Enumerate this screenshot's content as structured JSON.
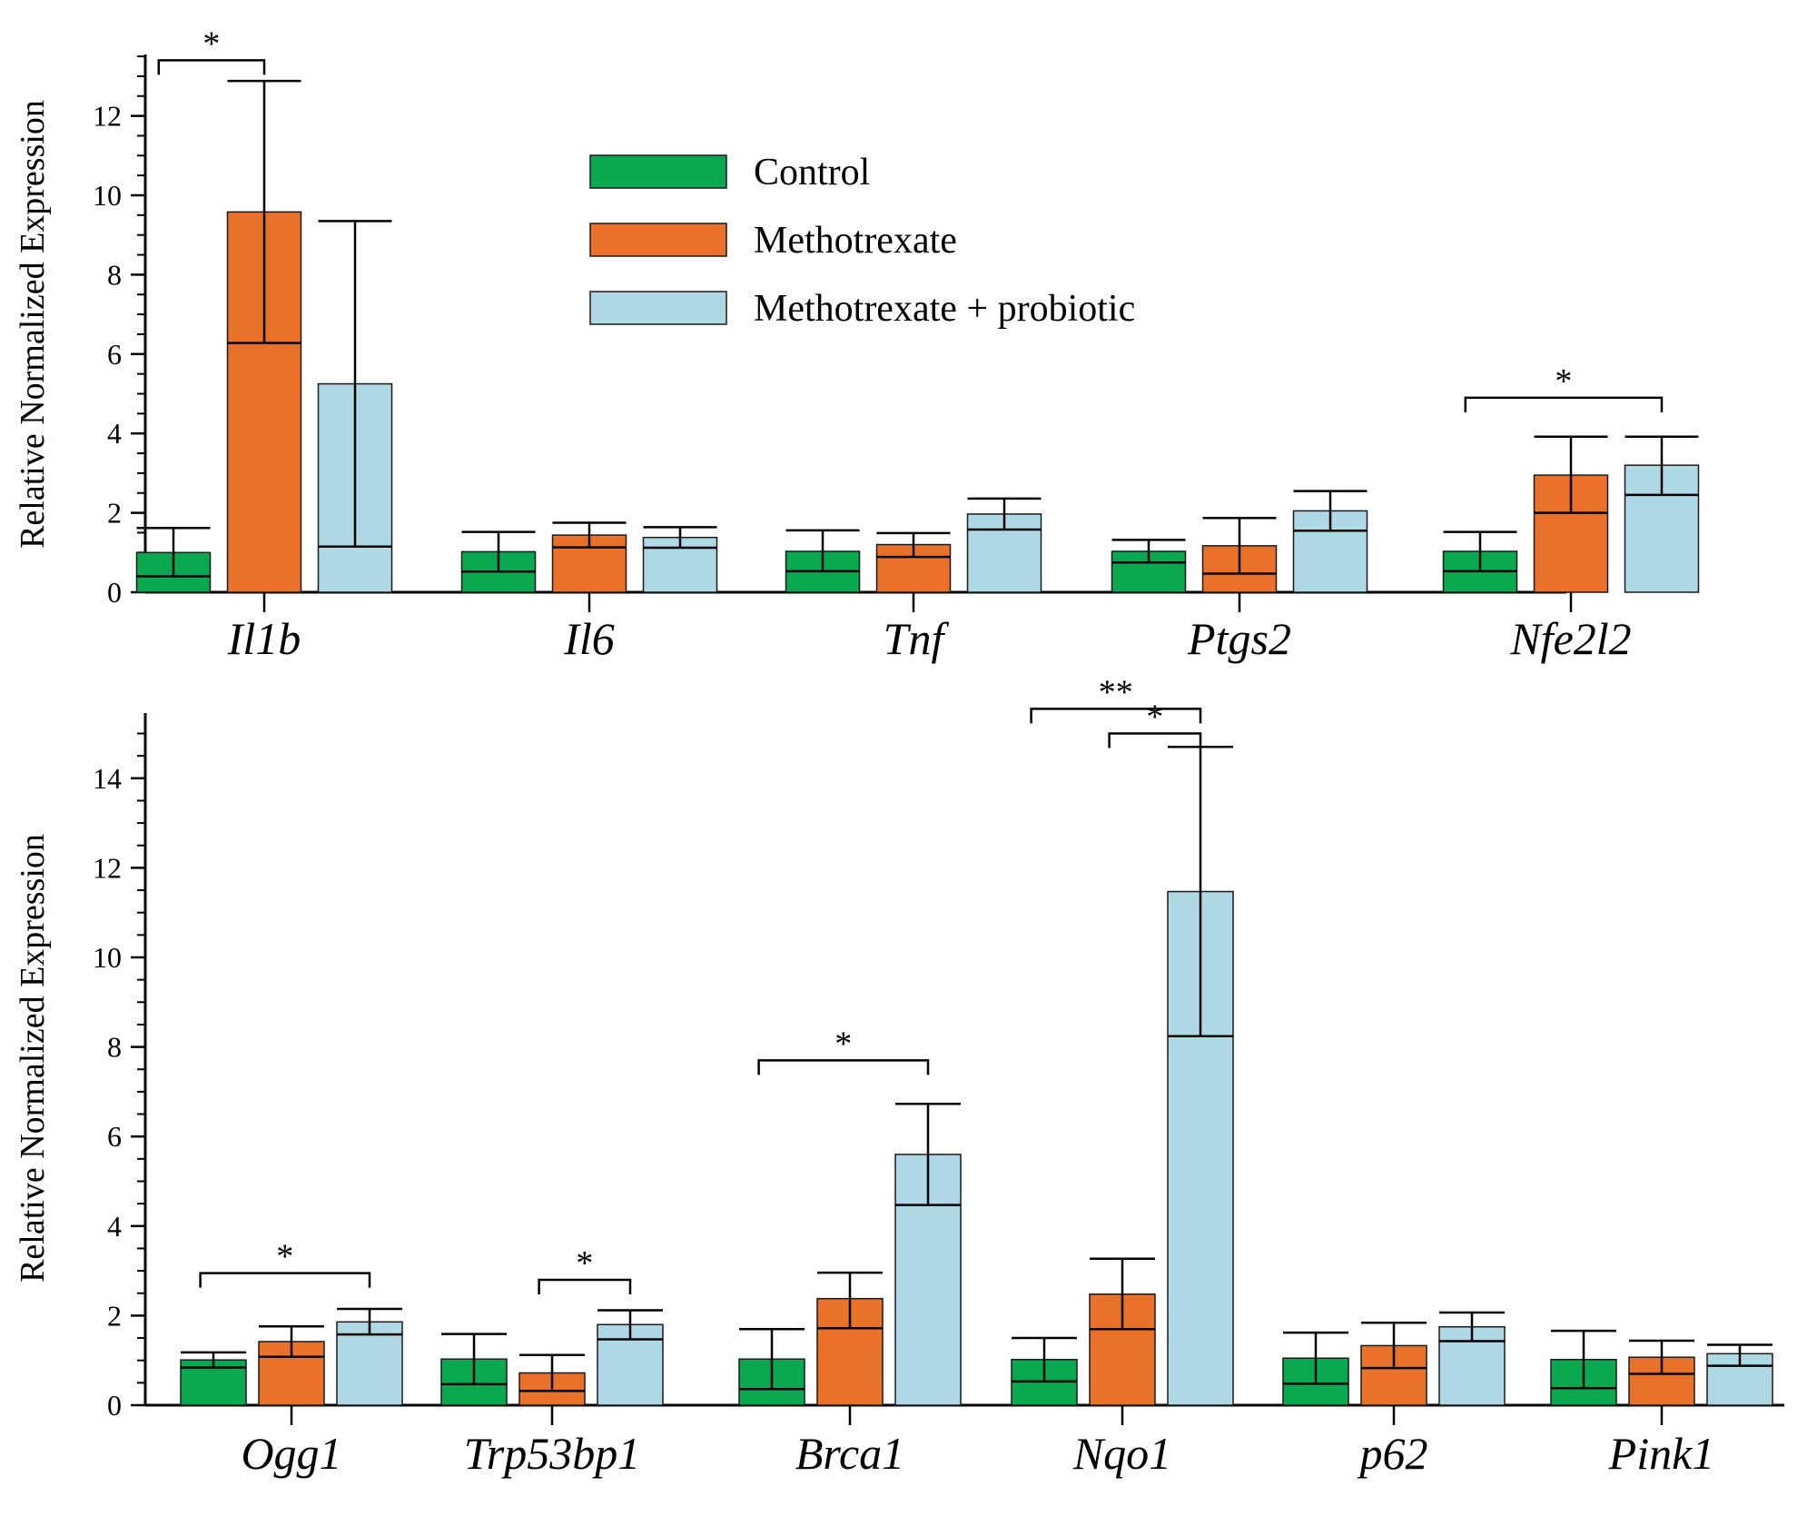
{
  "legend": [
    {
      "label": "Control",
      "color": "#0aa84f"
    },
    {
      "label": "Methotrexate",
      "color": "#e9712a"
    },
    {
      "label": "Methotrexate + probiotic",
      "color": "#add8e4"
    }
  ],
  "chart_data": [
    {
      "type": "bar",
      "ylabel": "Relative Normalized Expression",
      "ylim": [
        0,
        13.5
      ],
      "yticks": [
        0,
        2,
        4,
        6,
        8,
        10,
        12
      ],
      "categories": [
        "Il1b",
        "Il6",
        "Tnf",
        "Ptgs2",
        "Nfe2l2"
      ],
      "series": [
        {
          "name": "Control",
          "values": [
            1.0,
            1.02,
            1.03,
            1.03,
            1.03
          ],
          "error_low": [
            0.4,
            0.52,
            0.53,
            0.75,
            0.53
          ],
          "error_high": [
            1.62,
            1.52,
            1.56,
            1.32,
            1.52
          ]
        },
        {
          "name": "Methotrexate",
          "values": [
            9.58,
            1.44,
            1.2,
            1.17,
            2.95
          ],
          "error_low": [
            6.28,
            1.13,
            0.89,
            0.47,
            2.0
          ],
          "error_high": [
            12.88,
            1.75,
            1.49,
            1.87,
            3.92
          ]
        },
        {
          "name": "Methotrexate + probiotic",
          "values": [
            5.25,
            1.38,
            1.97,
            2.05,
            3.2
          ],
          "error_low": [
            1.15,
            1.12,
            1.58,
            1.55,
            2.45
          ],
          "error_high": [
            9.35,
            1.64,
            2.36,
            2.55,
            3.92
          ]
        }
      ],
      "significance": [
        {
          "category": 0,
          "from": 0,
          "to": 1,
          "label": "*",
          "level": 13.4
        },
        {
          "category": 4,
          "from": 0,
          "to": 2,
          "label": "*",
          "level": 4.9
        }
      ],
      "legend_position": "top-center"
    },
    {
      "type": "bar",
      "ylabel": "Relative Normalized Expression",
      "ylim": [
        0,
        15
      ],
      "yticks": [
        0,
        2,
        4,
        6,
        8,
        10,
        12,
        14
      ],
      "categories": [
        "Ogg1",
        "Trp53bp1",
        "Brca1",
        "Nqo1",
        "p62",
        "Pink1"
      ],
      "series": [
        {
          "name": "Control",
          "values": [
            1.01,
            1.03,
            1.03,
            1.02,
            1.05,
            1.02
          ],
          "error_low": [
            0.84,
            0.47,
            0.36,
            0.53,
            0.48,
            0.38
          ],
          "error_high": [
            1.18,
            1.59,
            1.7,
            1.5,
            1.62,
            1.66
          ]
        },
        {
          "name": "Methotrexate",
          "values": [
            1.42,
            0.72,
            2.38,
            2.48,
            1.33,
            1.07
          ],
          "error_low": [
            1.08,
            0.32,
            1.72,
            1.7,
            0.83,
            0.7
          ],
          "error_high": [
            1.76,
            1.12,
            2.96,
            3.27,
            1.84,
            1.44
          ]
        },
        {
          "name": "Methotrexate + probiotic",
          "values": [
            1.86,
            1.8,
            5.6,
            11.47,
            1.75,
            1.15
          ],
          "error_low": [
            1.58,
            1.47,
            4.47,
            8.24,
            1.43,
            0.88
          ],
          "error_high": [
            2.15,
            2.12,
            6.73,
            14.7,
            2.07,
            1.35
          ]
        }
      ],
      "significance": [
        {
          "category": 0,
          "from": 0,
          "to": 2,
          "label": "*",
          "level": 2.95
        },
        {
          "category": 1,
          "from": 1,
          "to": 2,
          "label": "*",
          "level": 2.8
        },
        {
          "category": 2,
          "from": 0,
          "to": 2,
          "label": "*",
          "level": 7.7
        },
        {
          "category": 3,
          "from": 0,
          "to": 2,
          "label": "**",
          "level": 15.55
        },
        {
          "category": 3,
          "from": 1,
          "to": 2,
          "label": "*",
          "level": 15.0
        }
      ]
    }
  ]
}
